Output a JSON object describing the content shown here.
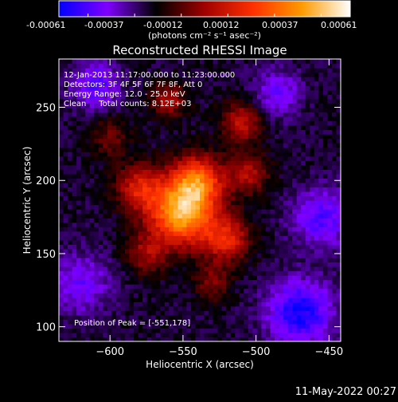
{
  "colorbar": {
    "ticks": [
      "-0.00061",
      "-0.00037",
      "-0.00012",
      "0.00012",
      "0.00037",
      "0.00061"
    ],
    "units": "(photons cm⁻² s⁻¹ asec⁻²)",
    "colors": [
      "#0000ff",
      "#7f00ff",
      "#000000",
      "#a00000",
      "#ff3000",
      "#ff9a00",
      "#ffffff"
    ]
  },
  "chart_data": {
    "type": "heatmap",
    "title": "Reconstructed RHESSI Image",
    "xlabel": "Heliocentric X (arcsec)",
    "ylabel": "Heliocentric Y (arcsec)",
    "xlim": [
      -635,
      -442
    ],
    "ylim": [
      90,
      283
    ],
    "xticks": [
      -600,
      -550,
      -500,
      -450
    ],
    "yticks": [
      100,
      150,
      200,
      250
    ],
    "peak_position": [
      -551,
      178
    ],
    "info_lines": [
      "12-Jan-2013 11:17:00.000 to 11:23:00.000",
      "Detectors: 3F 4F 5F 6F 7F 8F, Att 0",
      "Energy Range: 12.0 - 25.0 keV",
      "Clean     Total counts: 8.12E+03"
    ],
    "peak_label": "Position of Peak = [-551,178]"
  },
  "footer": {
    "timestamp": "11-May-2022 00:27"
  }
}
